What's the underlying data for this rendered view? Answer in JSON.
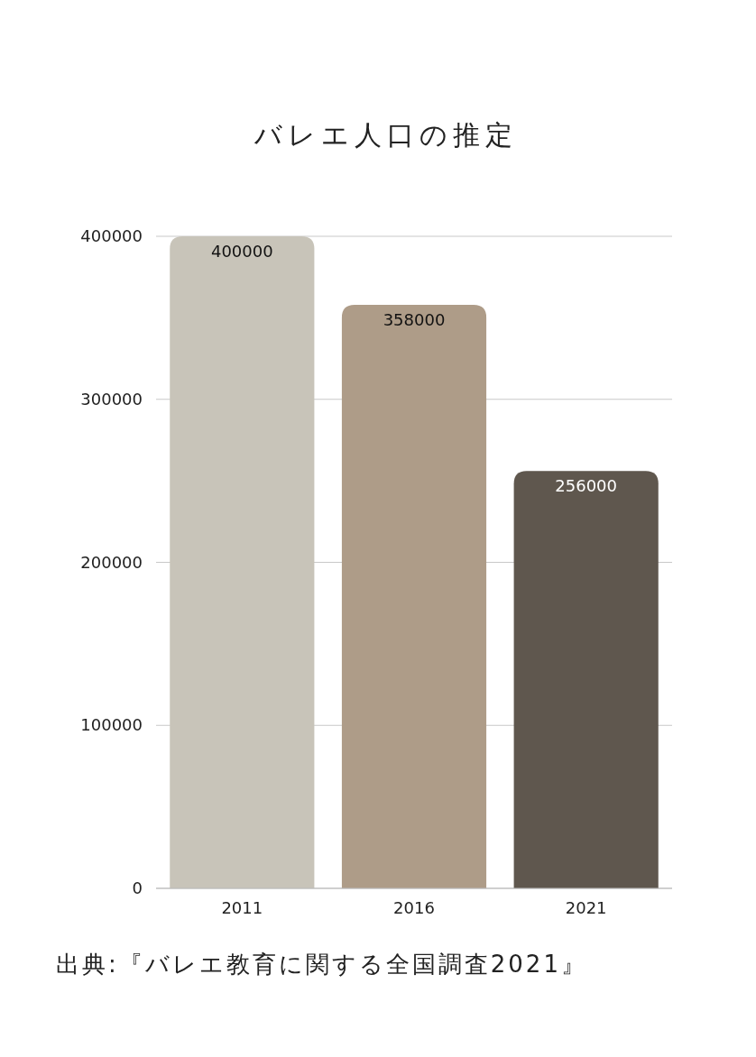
{
  "chart_data": {
    "type": "bar",
    "title": "バレエ人口の推定",
    "categories": [
      "2011",
      "2016",
      "2021"
    ],
    "values": [
      400000,
      358000,
      256000
    ],
    "colors": [
      "#c8c4b9",
      "#ae9c88",
      "#5f574e"
    ],
    "ylim": [
      0,
      400000
    ],
    "yticks": [
      0,
      100000,
      200000,
      300000,
      400000
    ],
    "grid": "y",
    "data_labels": true,
    "annotations": [
      "出典:『バレエ教育に関する全国調査2021』"
    ]
  }
}
